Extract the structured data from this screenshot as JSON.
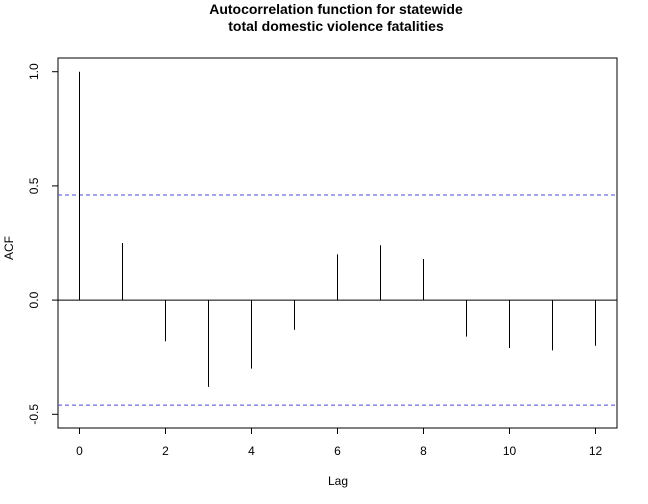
{
  "chart_data": {
    "type": "bar",
    "title_line1": "Autocorrelation function for statewide",
    "title_line2": "total domestic violence fatalities",
    "xlabel": "Lag",
    "ylabel": "ACF",
    "xlim": [
      -0.5,
      12.5
    ],
    "ylim": [
      -0.5,
      1.0
    ],
    "x_ticks": [
      0,
      2,
      4,
      6,
      8,
      10,
      12
    ],
    "y_ticks": [
      -0.5,
      0.0,
      0.5,
      1.0
    ],
    "x_tick_labels": [
      "0",
      "2",
      "4",
      "6",
      "8",
      "10",
      "12"
    ],
    "y_tick_labels": [
      "-0.5",
      "0.0",
      "0.5",
      "1.0"
    ],
    "lags": [
      0,
      1,
      2,
      3,
      4,
      5,
      6,
      7,
      8,
      9,
      10,
      11,
      12
    ],
    "acf": [
      1.0,
      0.25,
      -0.18,
      -0.38,
      -0.3,
      -0.13,
      0.2,
      0.24,
      0.18,
      -0.16,
      -0.21,
      -0.22,
      -0.2
    ],
    "confidence_bound": 0.46,
    "bound_color": "#4B4BD6"
  }
}
